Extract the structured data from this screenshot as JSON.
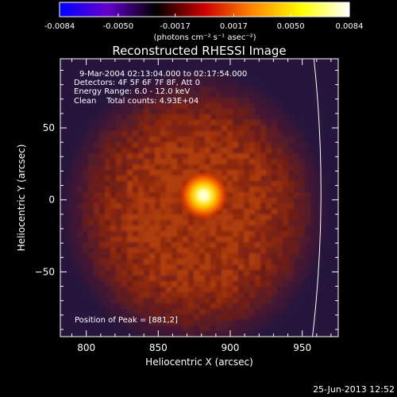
{
  "chart_data": {
    "type": "heatmap",
    "title": "Reconstructed RHESSI Image",
    "colorbar": {
      "ticks": [
        "-0.0084",
        "-0.0050",
        "-0.0017",
        "0.0017",
        "0.0050",
        "0.0084"
      ],
      "range": [
        -0.0084,
        0.0084
      ],
      "unit_label": "(photons cm⁻² s⁻¹ asec⁻²)",
      "colormap": [
        "#0000ff",
        "#6600cc",
        "#000000",
        "#cc0000",
        "#ff8800",
        "#ffff00",
        "#ffffff"
      ]
    },
    "xlabel": "Heliocentric X (arcsec)",
    "ylabel": "Heliocentric Y (arcsec)",
    "x_ticks": [
      "800",
      "850",
      "900",
      "950"
    ],
    "y_ticks": [
      "50",
      "0",
      "−50"
    ],
    "xlim": [
      782,
      975
    ],
    "ylim": [
      -95,
      98
    ],
    "limb_curve": {
      "x_at_top": 958,
      "x_at_middle": 963,
      "x_at_bottom": 957
    },
    "peak": {
      "x": 881,
      "y": 2,
      "value": 0.0084
    },
    "annotations": [
      "9-Mar-2004 02:13:04.000 to 02:17:54.000",
      "Detectors: 4F 5F 6F 7F 8F, Att 0",
      "Energy Range: 6.0 - 12.0 keV",
      "Clean    Total counts: 4.93E+04"
    ],
    "peak_label": "Position of Peak = [881,2]",
    "timestamp": "25-Jun-2013 12:52"
  }
}
